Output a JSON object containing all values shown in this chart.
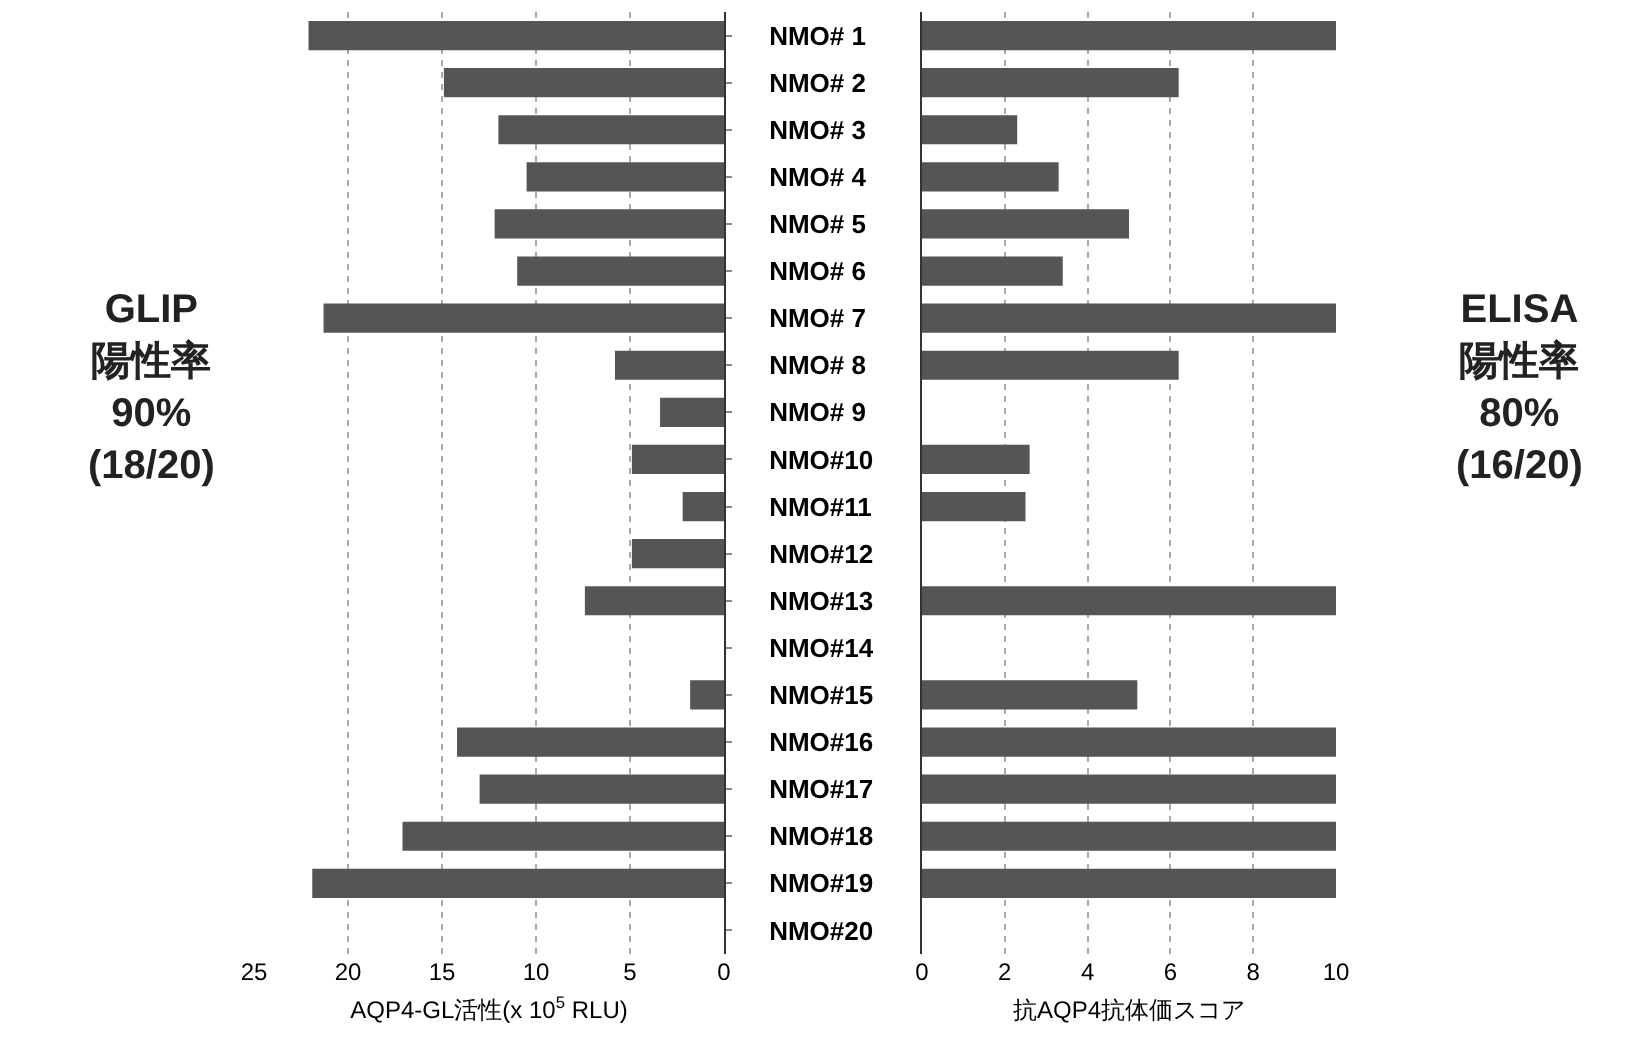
{
  "chart_data": [
    {
      "type": "bar",
      "orientation": "horizontal",
      "xlabel": "AQP4-GL活性(x 10$^{5}$ RLU)",
      "categories": [
        "NMO# 1",
        "NMO# 2",
        "NMO# 3",
        "NMO# 4",
        "NMO# 5",
        "NMO# 6",
        "NMO# 7",
        "NMO# 8",
        "NMO# 9",
        "NMO#10",
        "NMO#11",
        "NMO#12",
        "NMO#13",
        "NMO#14",
        "NMO#15",
        "NMO#16",
        "NMO#17",
        "NMO#18",
        "NMO#19",
        "NMO#20"
      ],
      "values": [
        22.1,
        14.9,
        12,
        10.5,
        12.2,
        11,
        21.3,
        5.8,
        3.4,
        4.9,
        2.2,
        4.9,
        7.4,
        0,
        1.8,
        14.2,
        13,
        17.1,
        21.9,
        0
      ],
      "color": "#555555",
      "xlim": [
        25,
        0
      ],
      "xticks": [
        25,
        20,
        15,
        10,
        5,
        0
      ],
      "grid": "x",
      "annotations": [
        "GLIP\n陽性率\n90%\n(18/20)"
      ]
    },
    {
      "type": "bar",
      "orientation": "horizontal",
      "xlabel": "抗AQP4抗体価スコア",
      "categories": [
        null,
        null,
        null,
        null,
        null,
        null,
        null,
        null,
        null,
        null,
        null,
        null,
        null,
        null,
        null,
        null,
        null,
        null,
        null,
        null
      ],
      "tick_labels": "x",
      "values": [
        10,
        6.2,
        2.3,
        3.3,
        5,
        3.4,
        10,
        6.2,
        0,
        2.6,
        2.5,
        0,
        10,
        0,
        5.2,
        10,
        10,
        10,
        10,
        0
      ],
      "color": "#555555",
      "xlim": [
        0,
        10
      ],
      "xticks": [
        0,
        2,
        4,
        6,
        8,
        10
      ],
      "grid": "x",
      "annotations": [
        "ELISA\n陽性率\n80%\n(16/20)"
      ]
    }
  ]
}
